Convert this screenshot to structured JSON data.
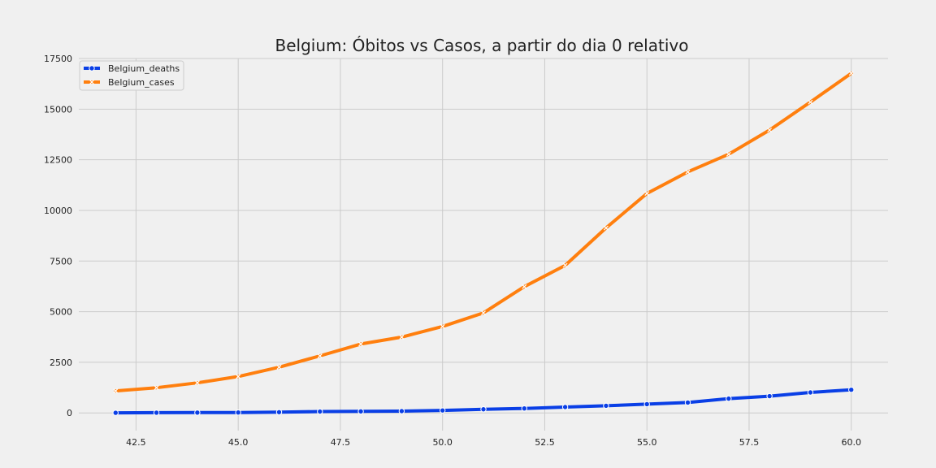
{
  "chart_data": {
    "type": "line",
    "title": "Belgium: Óbitos vs Casos, a partir do dia 0 relativo",
    "xlabel": "",
    "ylabel": "",
    "xlim": [
      41.1,
      60.9
    ],
    "ylim": [
      -875,
      17500
    ],
    "xticks": [
      42.5,
      45.0,
      47.5,
      50.0,
      52.5,
      55.0,
      57.5,
      60.0
    ],
    "xtick_labels": [
      "42.5",
      "45.0",
      "47.5",
      "50.0",
      "52.5",
      "55.0",
      "57.5",
      "60.0"
    ],
    "yticks": [
      0,
      2500,
      5000,
      7500,
      10000,
      12500,
      15000,
      17500
    ],
    "ytick_labels": [
      "0",
      "2500",
      "5000",
      "7500",
      "10000",
      "12500",
      "15000",
      "17500"
    ],
    "grid": true,
    "legend_position": "top-left",
    "x": [
      42,
      43,
      44,
      45,
      46,
      47,
      48,
      49,
      50,
      51,
      52,
      53,
      54,
      55,
      56,
      57,
      58,
      59,
      60
    ],
    "series": [
      {
        "name": "Belgium_deaths",
        "color": "#0a3fe6",
        "marker": "circle",
        "values": [
          5,
          10,
          14,
          21,
          37,
          67,
          75,
          88,
          122,
          178,
          220,
          289,
          353,
          431,
          513,
          705,
          828,
          1011,
          1143
        ]
      },
      {
        "name": "Belgium_cases",
        "color": "#ff7f0e",
        "marker": "x",
        "values": [
          1085,
          1243,
          1486,
          1795,
          2257,
          2815,
          3401,
          3743,
          4269,
          4937,
          6235,
          7284,
          9134,
          10836,
          11899,
          12775,
          13964,
          15348,
          16770
        ]
      }
    ]
  }
}
